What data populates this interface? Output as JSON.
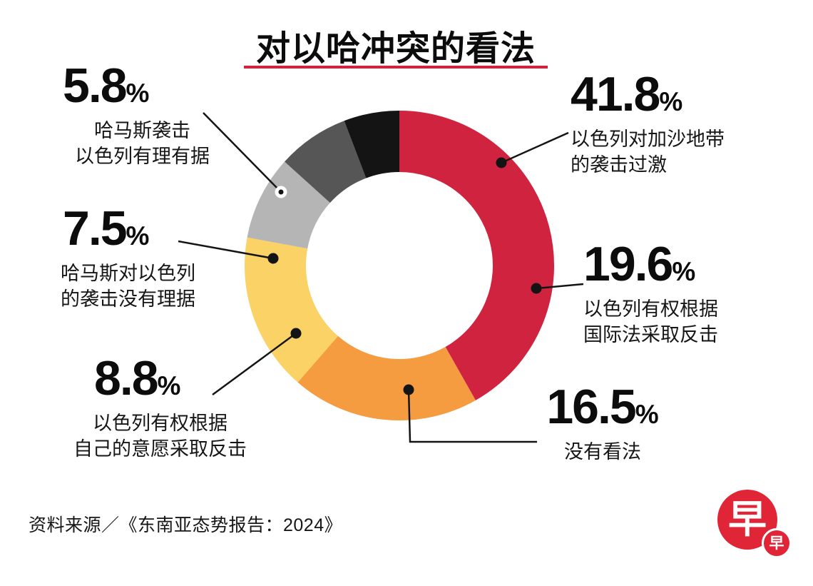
{
  "title": "对以哈冲突的看法",
  "source": "资料来源／《东南亚态势报告：2024》",
  "logo": {
    "main": "早",
    "small": "早"
  },
  "colors": {
    "accent_red": "#d0233f",
    "logo_red": "#e02537",
    "line_black": "#141414"
  },
  "chart_data": {
    "type": "pie",
    "variant": "donut",
    "title": "对以哈冲突的看法",
    "unit": "%",
    "percent_sign": "%",
    "legend_position": "callouts",
    "segments": [
      {
        "value": 41.8,
        "label": "以色列对加沙地带的袭击过激",
        "desc_lines": [
          "以色列对加沙地带",
          "的袭击过激"
        ],
        "color": "#d0233f"
      },
      {
        "value": 19.6,
        "label": "以色列有权根据国际法采取反击",
        "desc_lines": [
          "以色列有权根据",
          "国际法采取反击"
        ],
        "color": "#f59b40"
      },
      {
        "value": 16.5,
        "label": "没有看法",
        "desc_lines": [
          "没有看法"
        ],
        "color": "#fbd265"
      },
      {
        "value": 8.8,
        "label": "以色列有权根据自己的意愿采取反击",
        "desc_lines": [
          "以色列有权根据",
          "自己的意愿采取反击"
        ],
        "color": "#b5b5b5"
      },
      {
        "value": 7.5,
        "label": "哈马斯对以色列的袭击没有理据",
        "desc_lines": [
          "哈马斯对以色列",
          "的袭击没有理据"
        ],
        "color": "#565656"
      },
      {
        "value": 5.8,
        "label": "哈马斯袭击以色列有理有据",
        "desc_lines": [
          "哈马斯袭击",
          "以色列有理有据"
        ],
        "color": "#141414"
      }
    ]
  }
}
